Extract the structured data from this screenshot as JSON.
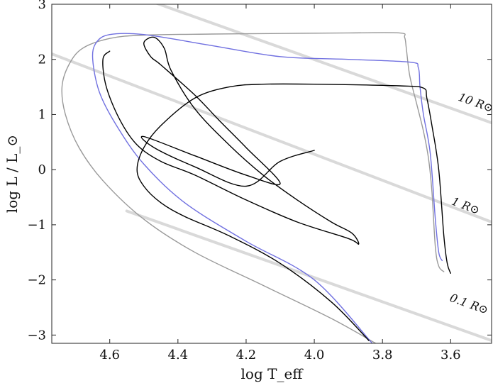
{
  "chart_data": {
    "type": "line",
    "title": "",
    "xlabel": "log T_eff",
    "ylabel": "log L / L_⊙",
    "xlim": [
      4.77,
      3.48
    ],
    "ylim": [
      -3.15,
      3.0
    ],
    "x_inverted": true,
    "grid": false,
    "legend": "none",
    "x_ticks": [
      {
        "value": 4.6,
        "label": "4.6"
      },
      {
        "value": 4.4,
        "label": "4.4"
      },
      {
        "value": 4.2,
        "label": "4.2"
      },
      {
        "value": 4.0,
        "label": "4.0"
      },
      {
        "value": 3.8,
        "label": "3.8"
      },
      {
        "value": 3.6,
        "label": "3.6"
      }
    ],
    "y_ticks": [
      {
        "value": 3,
        "label": "3"
      },
      {
        "value": 2,
        "label": "2"
      },
      {
        "value": 1,
        "label": "1"
      },
      {
        "value": 0,
        "label": "0"
      },
      {
        "value": -1,
        "label": "−1"
      },
      {
        "value": -2,
        "label": "−2"
      },
      {
        "value": -3,
        "label": "−3"
      }
    ],
    "radius_lines": [
      {
        "label": "10 R⊙",
        "color": "#d9d9d9",
        "points": [
          [
            4.5,
            3.1
          ],
          [
            3.48,
            0.85
          ]
        ],
        "label_at": [
          3.53,
          1.15
        ]
      },
      {
        "label": "1 R⊙",
        "color": "#d9d9d9",
        "points": [
          [
            4.77,
            2.1
          ],
          [
            3.48,
            -0.95
          ]
        ],
        "label_at": [
          3.56,
          -0.72
        ]
      },
      {
        "label": "0.1 R⊙",
        "color": "#d9d9d9",
        "points": [
          [
            4.55,
            -0.75
          ],
          [
            3.48,
            -3.1
          ]
        ],
        "label_at": [
          3.55,
          -2.5
        ]
      }
    ],
    "series": [
      {
        "color": "#9a9a9a",
        "points": [
          [
            3.62,
            -1.85
          ],
          [
            3.635,
            -1.75
          ],
          [
            3.645,
            -1.4
          ],
          [
            3.655,
            -0.4
          ],
          [
            3.665,
            0.2
          ],
          [
            3.68,
            0.7
          ],
          [
            3.7,
            1.2
          ],
          [
            3.72,
            1.7
          ],
          [
            3.73,
            2.2
          ],
          [
            3.735,
            2.4
          ],
          [
            3.75,
            2.48
          ],
          [
            3.9,
            2.48
          ],
          [
            4.1,
            2.47
          ],
          [
            4.3,
            2.46
          ],
          [
            4.5,
            2.44
          ],
          [
            4.6,
            2.38
          ],
          [
            4.68,
            2.2
          ],
          [
            4.72,
            1.9
          ],
          [
            4.74,
            1.5
          ],
          [
            4.73,
            1.0
          ],
          [
            4.69,
            0.4
          ],
          [
            4.62,
            -0.2
          ],
          [
            4.5,
            -0.9
          ],
          [
            4.35,
            -1.5
          ],
          [
            4.15,
            -2.1
          ],
          [
            3.95,
            -2.7
          ],
          [
            3.82,
            -3.15
          ]
        ]
      },
      {
        "color": "#7070e0",
        "points": [
          [
            3.625,
            -1.65
          ],
          [
            3.635,
            -1.5
          ],
          [
            3.645,
            -0.9
          ],
          [
            3.66,
            0.3
          ],
          [
            3.68,
            1.0
          ],
          [
            3.69,
            1.5
          ],
          [
            3.695,
            1.85
          ],
          [
            3.72,
            1.95
          ],
          [
            3.9,
            2.0
          ],
          [
            4.1,
            2.05
          ],
          [
            4.3,
            2.25
          ],
          [
            4.5,
            2.45
          ],
          [
            4.6,
            2.45
          ],
          [
            4.64,
            2.3
          ],
          [
            4.65,
            2.0
          ],
          [
            4.63,
            1.4
          ],
          [
            4.58,
            0.8
          ],
          [
            4.5,
            0.1
          ],
          [
            4.38,
            -0.6
          ],
          [
            4.2,
            -1.3
          ],
          [
            4.0,
            -2.0
          ],
          [
            3.83,
            -3.15
          ]
        ]
      },
      {
        "color": "#000000",
        "points": [
          [
            3.6,
            -1.88
          ],
          [
            3.61,
            -1.7
          ],
          [
            3.62,
            -1.2
          ],
          [
            3.635,
            0.0
          ],
          [
            3.655,
            0.8
          ],
          [
            3.67,
            1.3
          ],
          [
            3.68,
            1.48
          ],
          [
            3.75,
            1.52
          ],
          [
            4.0,
            1.55
          ],
          [
            4.15,
            1.55
          ],
          [
            4.25,
            1.5
          ],
          [
            4.35,
            1.3
          ],
          [
            4.45,
            0.8
          ],
          [
            4.5,
            0.4
          ],
          [
            4.52,
            0.0
          ],
          [
            4.5,
            -0.3
          ],
          [
            4.45,
            -0.6
          ],
          [
            4.38,
            -0.85
          ],
          [
            4.25,
            -1.2
          ],
          [
            4.1,
            -1.7
          ],
          [
            3.95,
            -2.4
          ],
          [
            3.84,
            -3.1
          ]
        ]
      },
      {
        "color": "#000000",
        "points": [
          [
            4.6,
            2.15
          ],
          [
            4.62,
            2.0
          ],
          [
            4.61,
            1.5
          ],
          [
            4.57,
            0.9
          ],
          [
            4.52,
            0.45
          ],
          [
            4.45,
            0.15
          ],
          [
            4.35,
            -0.1
          ],
          [
            4.2,
            -0.55
          ],
          [
            4.05,
            -0.95
          ],
          [
            3.9,
            -1.25
          ],
          [
            3.87,
            -1.35
          ],
          [
            3.89,
            -1.15
          ],
          [
            3.95,
            -0.95
          ],
          [
            4.05,
            -0.55
          ],
          [
            4.15,
            -0.1
          ],
          [
            4.25,
            0.45
          ],
          [
            4.35,
            1.1
          ],
          [
            4.42,
            1.8
          ],
          [
            4.44,
            2.2
          ],
          [
            4.47,
            2.4
          ],
          [
            4.5,
            2.3
          ],
          [
            4.48,
            2.05
          ],
          [
            4.45,
            1.9
          ],
          [
            4.35,
            1.35
          ],
          [
            4.28,
            0.9
          ],
          [
            4.2,
            0.4
          ],
          [
            4.1,
            -0.25
          ],
          [
            4.2,
            -0.1
          ],
          [
            4.35,
            0.25
          ],
          [
            4.5,
            0.6
          ],
          [
            4.47,
            0.4
          ],
          [
            4.35,
            0.05
          ],
          [
            4.2,
            -0.3
          ],
          [
            4.1,
            0.15
          ],
          [
            4.0,
            0.35
          ]
        ]
      }
    ]
  }
}
